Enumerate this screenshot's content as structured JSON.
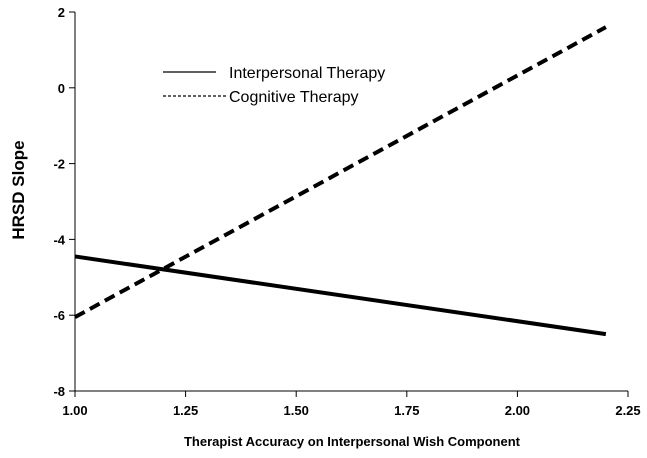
{
  "chart_data": {
    "type": "line",
    "xlabel": "Therapist Accuracy on Interpersonal Wish Component",
    "ylabel": "HRSD Slope",
    "xlim": [
      1.0,
      2.25
    ],
    "ylim": [
      -8,
      2
    ],
    "x_ticks": [
      "1.00",
      "1.25",
      "1.50",
      "1.75",
      "2.00",
      "2.25"
    ],
    "y_ticks": [
      "2",
      "0",
      "-2",
      "-4",
      "-6",
      "-8"
    ],
    "grid": false,
    "legend_position": "top-left",
    "series": [
      {
        "name": "Interpersonal Therapy",
        "style": "solid",
        "color": "#000000",
        "x": [
          1.0,
          2.2
        ],
        "y": [
          -4.45,
          -6.5
        ]
      },
      {
        "name": "Cognitive Therapy",
        "style": "dashed",
        "color": "#000000",
        "x": [
          1.0,
          2.2
        ],
        "y": [
          -6.05,
          1.6
        ]
      }
    ]
  }
}
